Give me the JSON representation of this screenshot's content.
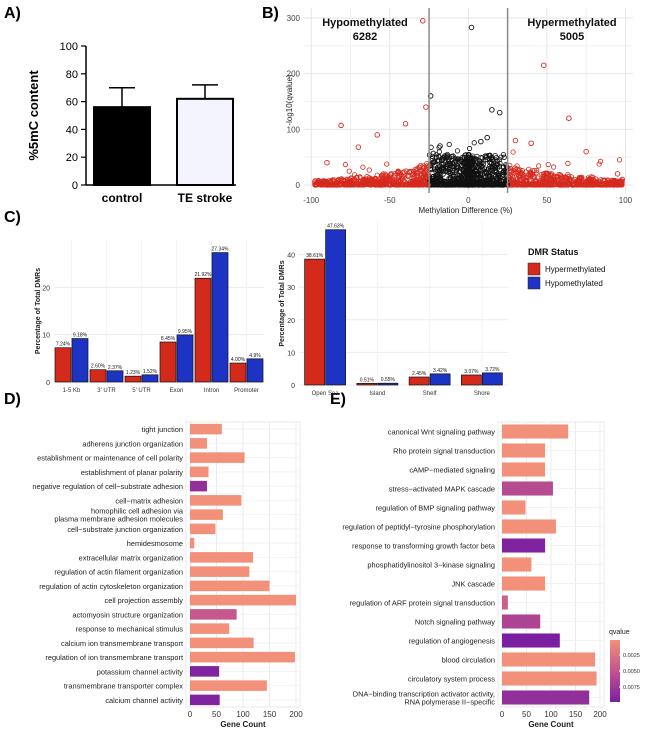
{
  "panel_labels": [
    "A)",
    "B)",
    "C)",
    "D)",
    "E)"
  ],
  "chart_data": [
    {
      "id": "A",
      "type": "bar",
      "ylabel": "%5mC content",
      "ylim": [
        0,
        100
      ],
      "yticks": [
        0,
        20,
        40,
        60,
        80,
        100
      ],
      "categories": [
        "control",
        "TE stroke"
      ],
      "values": [
        56,
        62
      ],
      "errors": [
        14,
        10
      ],
      "colors": [
        "#000000",
        "#f4f4ff"
      ]
    },
    {
      "id": "B",
      "type": "scatter",
      "xlabel": "Methylation Difference (%)",
      "ylabel": "-log10(qvalue)",
      "xlim": [
        -100,
        100
      ],
      "ylim": [
        0,
        300
      ],
      "xticks": [
        -100,
        -50,
        0,
        50,
        100
      ],
      "yticks": [
        0,
        100,
        200,
        300
      ],
      "thresholds": [
        -25,
        25
      ],
      "annotations": [
        {
          "label": "Hypomethylated",
          "count": "6282"
        },
        {
          "label": "Hypermethylated",
          "count": "5005"
        }
      ],
      "highlight_points": [
        [
          -29,
          295
        ],
        [
          2,
          283
        ],
        [
          48,
          215
        ],
        [
          -24,
          160
        ],
        [
          -27,
          140
        ],
        [
          -40,
          110
        ],
        [
          -81,
          107
        ],
        [
          64,
          120
        ],
        [
          15,
          135
        ],
        [
          20,
          130
        ],
        [
          -58,
          90
        ],
        [
          12,
          85
        ],
        [
          30,
          80
        ],
        [
          -18,
          70
        ],
        [
          8,
          78
        ],
        [
          40,
          75
        ],
        [
          -70,
          68
        ],
        [
          75,
          60
        ],
        [
          -90,
          40
        ],
        [
          95,
          20
        ],
        [
          98,
          10
        ]
      ],
      "colors": {
        "significant": "#d62a1e",
        "nonsignificant": "#111111"
      }
    },
    {
      "id": "C1",
      "type": "bar",
      "ylabel": "Percentage of Total DMRs",
      "ylim": [
        0,
        30
      ],
      "yticks": [
        0,
        10,
        20
      ],
      "categories": [
        "1-5 Kb",
        "3' UTR",
        "5' UTR",
        "Exon",
        "Intron",
        "Promoter"
      ],
      "series": [
        {
          "name": "Hypermethylated",
          "values": [
            7.24,
            2.6,
            1.23,
            8.45,
            21.92,
            4.0
          ],
          "labels": [
            "7.24%",
            "2.60%",
            "1.23%",
            "8.45%",
            "21.92%",
            "4.00%"
          ]
        },
        {
          "name": "Hypomethylated",
          "values": [
            9.18,
            2.37,
            1.52,
            9.95,
            27.34,
            4.9
          ],
          "labels": [
            "9.18%",
            "2.37%",
            "1.52%",
            "9.95%",
            "27.34%",
            "4.9%"
          ]
        }
      ]
    },
    {
      "id": "C2",
      "type": "bar",
      "ylabel": "Percentage of Total DMRs",
      "ylim": [
        0,
        50
      ],
      "yticks": [
        0,
        10,
        20,
        30,
        40
      ],
      "categories": [
        "Open Sea",
        "Island",
        "Shelf",
        "Shore"
      ],
      "series": [
        {
          "name": "Hypermethylated",
          "values": [
            38.61,
            0.51,
            2.45,
            3.07
          ],
          "labels": [
            "38.61%",
            "0.51%",
            "2.45%",
            "3.07%"
          ]
        },
        {
          "name": "Hypomethylated",
          "values": [
            47.63,
            0.55,
            3.42,
            3.72
          ],
          "labels": [
            "47.63%",
            "0.55%",
            "3.42%",
            "3.72%"
          ]
        }
      ],
      "legend_title": "DMR Status",
      "legend_placement": "right",
      "colors": {
        "Hypermethylated": "#d42a1b",
        "Hypomethylated": "#1d33c4"
      }
    },
    {
      "id": "D",
      "type": "bar",
      "orientation": "horizontal",
      "xlabel": "Gene Count",
      "xlim": [
        0,
        200
      ],
      "xticks": [
        0,
        50,
        100,
        150,
        200
      ],
      "categories": [
        "tight junction",
        "adherens junction organization",
        "establishment or maintenance of cell polarity",
        "establishment of planar polarity",
        "negative regulation of cell−substrate adhesion",
        "cell−matrix adhesion",
        "homophilic cell adhesion via\nplasma membrane adhesion molecules",
        "cell−substrate junction organization",
        "hemidesmosome",
        "extracellular matrix organization",
        "regulation of actin filament organization",
        "regulation of actin cytoskeleton organization",
        "cell projection assembly",
        "actomyosin structure organization",
        "response to mechanical stimulus",
        "calcium ion transmembrane transport",
        "regulation of ion transmembrane transport",
        "potassium channel activity",
        "transmembrane transporter complex",
        "calcium channel activity"
      ],
      "values": [
        60,
        32,
        103,
        35,
        32,
        97,
        62,
        48,
        8,
        119,
        112,
        150,
        200,
        88,
        74,
        120,
        198,
        55,
        145,
        56
      ],
      "qvalues": [
        0.0008,
        0.0008,
        0.0008,
        0.0008,
        0.0075,
        0.0008,
        0.0008,
        0.0008,
        0.0008,
        0.0008,
        0.0008,
        0.0008,
        0.0008,
        0.0045,
        0.0008,
        0.0008,
        0.0008,
        0.0085,
        0.0008,
        0.0085
      ]
    },
    {
      "id": "E",
      "type": "bar",
      "orientation": "horizontal",
      "xlabel": "Gene Count",
      "xlim": [
        0,
        200
      ],
      "xticks": [
        0,
        50,
        100,
        150,
        200
      ],
      "categories": [
        "canonical Wnt signaling pathway",
        "Rho protein signal transduction",
        "cAMP−mediated signaling",
        "stress−activated MAPK cascade",
        "regulation of BMP signaling pathway",
        "regulation of peptidyl−tyrosine phosphorylation",
        "response to transforming growth factor beta",
        "phosphatidylinositol 3−kinase signaling",
        "JNK cascade",
        "regulation of ARF protein signal transduction",
        "Notch signaling pathway",
        "regulation of angiogenesis",
        "blood circulation",
        "circulatory system process",
        "DNA−binding transcription activator activity,\nRNA polymerase II−specific"
      ],
      "values": [
        135,
        88,
        88,
        104,
        48,
        110,
        88,
        60,
        88,
        12,
        78,
        118,
        190,
        193,
        178
      ],
      "qvalues": [
        0.0008,
        0.0008,
        0.0008,
        0.0055,
        0.0008,
        0.0008,
        0.0085,
        0.0008,
        0.0008,
        0.004,
        0.006,
        0.0088,
        0.0008,
        0.0008,
        0.0075
      ],
      "legend_title": "qvalue",
      "legend_ticks": [
        "0.0025",
        "0.0050",
        "0.0075"
      ]
    }
  ]
}
